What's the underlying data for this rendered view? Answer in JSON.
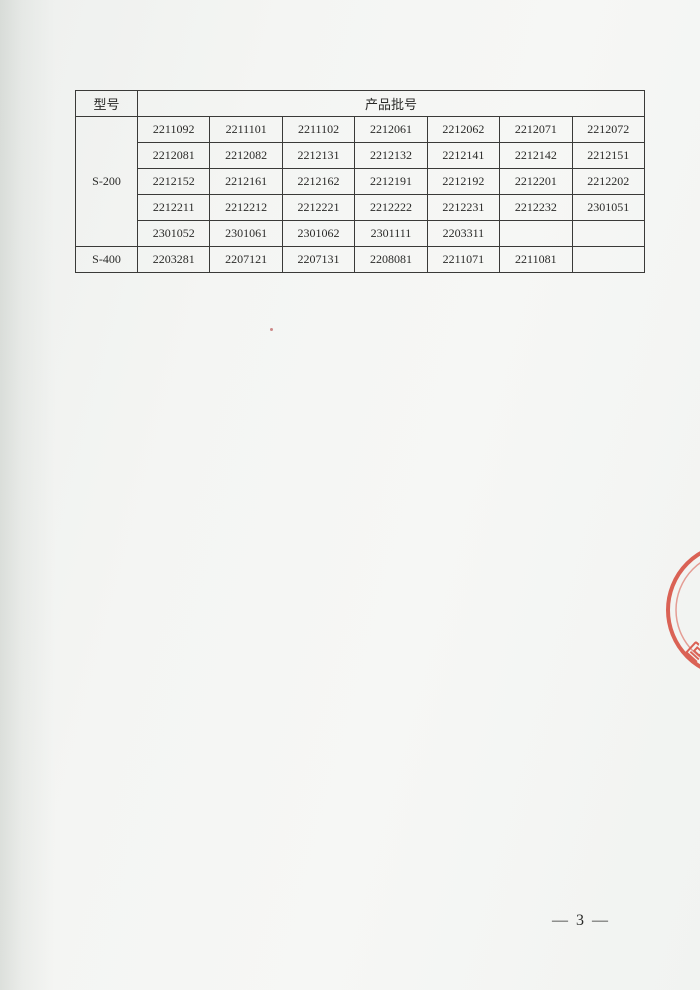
{
  "table": {
    "header_model": "型号",
    "header_batch": "产品批号",
    "groups": [
      {
        "model": "S-200",
        "rows": [
          [
            "2211092",
            "2211101",
            "2211102",
            "2212061",
            "2212062",
            "2212071",
            "2212072"
          ],
          [
            "2212081",
            "2212082",
            "2212131",
            "2212132",
            "2212141",
            "2212142",
            "2212151"
          ],
          [
            "2212152",
            "2212161",
            "2212162",
            "2212191",
            "2212192",
            "2212201",
            "2212202"
          ],
          [
            "2212211",
            "2212212",
            "2212221",
            "2212222",
            "2212231",
            "2212232",
            "2301051"
          ],
          [
            "2301052",
            "2301061",
            "2301062",
            "2301111",
            "2203311",
            "",
            ""
          ]
        ]
      },
      {
        "model": "S-400",
        "rows": [
          [
            "2203281",
            "2207121",
            "2207131",
            "2208081",
            "2211071",
            "2211081",
            ""
          ]
        ]
      }
    ]
  },
  "page_number": "— 3 —",
  "stamp": {
    "text": "有限公",
    "ring_color": "#d43a2a",
    "ink_opacity": 0.78
  },
  "colors": {
    "border": "#3a3a38",
    "text": "#2a2a28",
    "paper_light": "#f6f7f5",
    "paper_shade": "#eef0ee"
  }
}
